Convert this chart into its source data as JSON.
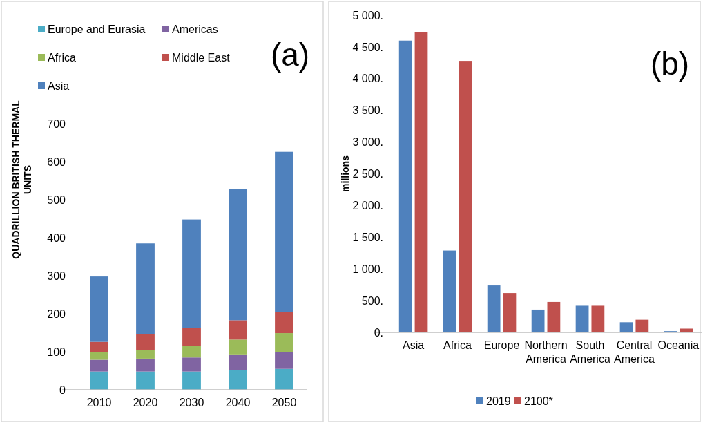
{
  "chart_data": [
    {
      "type": "bar",
      "stacked": true,
      "categories": [
        "2010",
        "2020",
        "2030",
        "2040",
        "2050"
      ],
      "ylabel": "QUADRILLION BRITISH THERMAL UNITS",
      "ylim": [
        0,
        700
      ],
      "yticks": [
        0,
        100,
        200,
        300,
        400,
        500,
        600,
        700
      ],
      "legend": "top",
      "grid": false,
      "annotations": [
        "(a)"
      ],
      "series": [
        {
          "name": "Europe and Eurasia",
          "color": "#4bacc6",
          "values": [
            48,
            48,
            48,
            52,
            55
          ]
        },
        {
          "name": "Americas",
          "color": "#8064a2",
          "values": [
            31,
            34,
            37,
            41,
            44
          ]
        },
        {
          "name": "Africa",
          "color": "#9bbb59",
          "values": [
            20,
            23,
            31,
            39,
            50
          ]
        },
        {
          "name": "Middle East",
          "color": "#c0504d",
          "values": [
            27,
            41,
            47,
            51,
            56
          ]
        },
        {
          "name": "Asia",
          "color": "#4f81bd",
          "values": [
            172,
            239,
            285,
            346,
            421
          ]
        }
      ]
    },
    {
      "type": "bar",
      "categories": [
        "Asia",
        "Africa",
        "Europe",
        "Northern America",
        "South America",
        "Central America",
        "Oceania"
      ],
      "ylabel": "millions",
      "ylim": [
        0,
        5000
      ],
      "yticks": [
        {
          "value": 0,
          "label": "0."
        },
        {
          "value": 500,
          "label": "500."
        },
        {
          "value": 1000,
          "label": "1 000."
        },
        {
          "value": 1500,
          "label": "1 500."
        },
        {
          "value": 2000,
          "label": "2 000."
        },
        {
          "value": 2500,
          "label": "2 500."
        },
        {
          "value": 3000,
          "label": "3 000."
        },
        {
          "value": 3500,
          "label": "3 500."
        },
        {
          "value": 4000,
          "label": "4 000."
        },
        {
          "value": 4500,
          "label": "4 500."
        },
        {
          "value": 5000,
          "label": "5 000."
        }
      ],
      "legend": "bottom",
      "grid": false,
      "annotations": [
        "(b)"
      ],
      "series": [
        {
          "name": "2019",
          "color": "#4f81bd",
          "values": [
            4600,
            1290,
            740,
            360,
            420,
            160,
            20
          ]
        },
        {
          "name": "2100*",
          "color": "#c0504d",
          "values": [
            4730,
            4280,
            620,
            480,
            420,
            200,
            60
          ]
        }
      ]
    }
  ]
}
